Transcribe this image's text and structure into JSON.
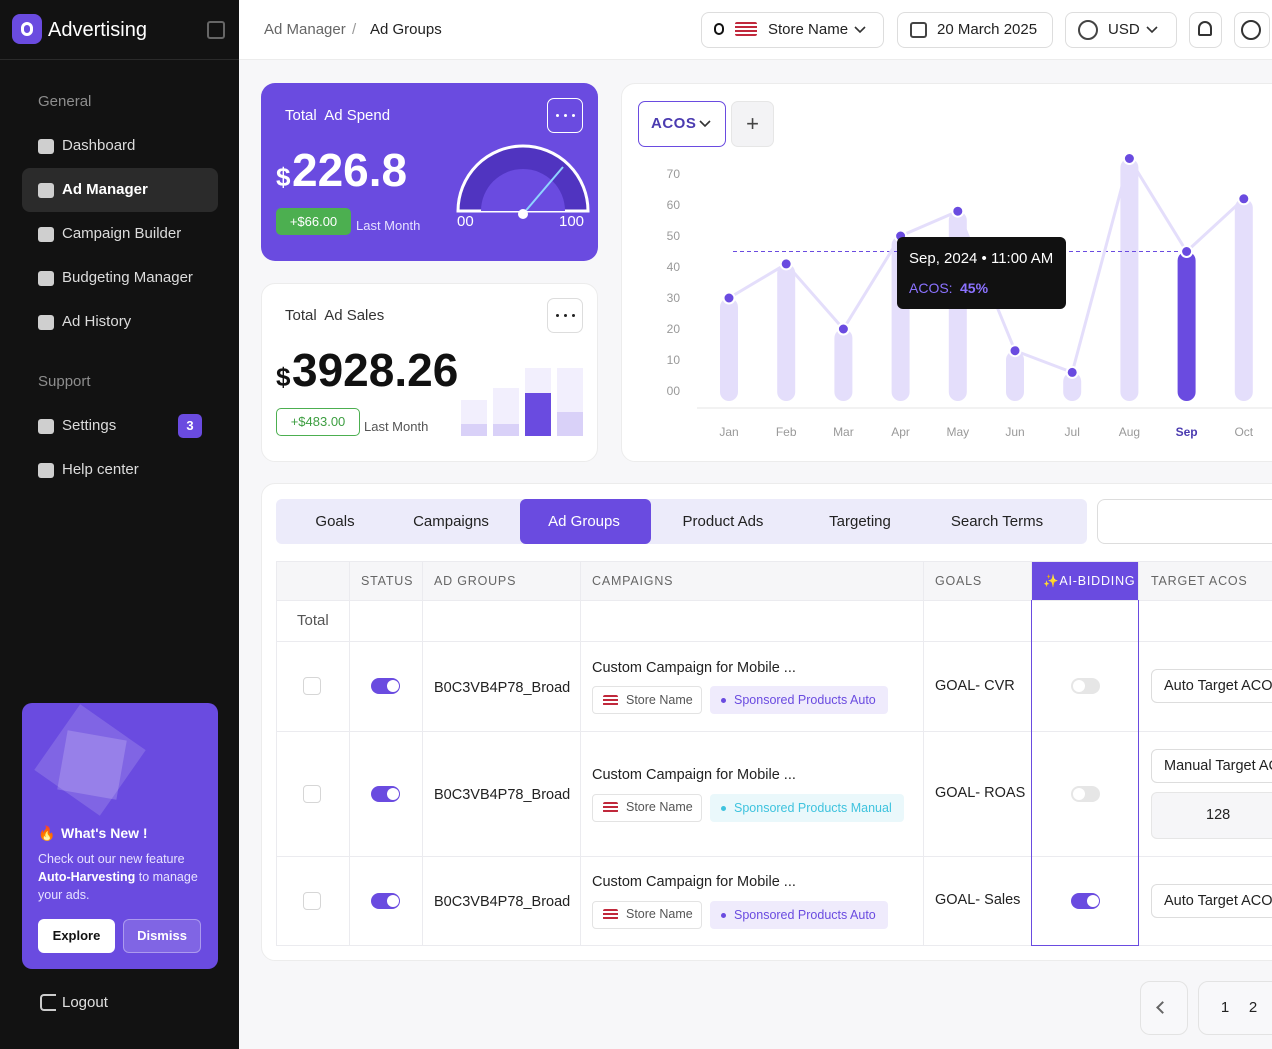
{
  "sidebar": {
    "brand": "Advertising",
    "sections": [
      {
        "title": "General",
        "items": [
          {
            "label": "Dashboard",
            "active": false
          },
          {
            "label": "Ad Manager",
            "active": true
          },
          {
            "label": "Campaign Builder",
            "active": false
          },
          {
            "label": "Budgeting Manager",
            "active": false
          },
          {
            "label": "Ad History",
            "active": false
          }
        ]
      },
      {
        "title": "Support",
        "items": [
          {
            "label": "Settings",
            "active": false,
            "badge": 3
          },
          {
            "label": "Help center",
            "active": false
          }
        ]
      }
    ],
    "promo": {
      "emoji": "🔥",
      "title": "What's New !",
      "text_before": "Check out our new feature",
      "highlight": "Auto-Harvesting",
      "text_after": "to manage your ads.",
      "buttons": [
        "Explore",
        "Dismiss"
      ]
    },
    "logout": "Logout"
  },
  "header": {
    "breadcrumb": [
      "Ad Manager",
      "Ad Groups"
    ],
    "separator": "/",
    "store": "Store Name",
    "date": "20 March 2025",
    "currency": "USD"
  },
  "spend_card": {
    "title": "Total  Ad Spend",
    "currency": "$",
    "value": 226.8,
    "change": "+$66.00",
    "period": "Last Month",
    "gauge": {
      "min_label": "00",
      "max_label": "100"
    }
  },
  "sales_card": {
    "title": "Total  Ad Sales",
    "currency": "$",
    "value": 3928.26,
    "change": "+$483.00",
    "period": "Last Month"
  },
  "chart_data": {
    "type": "bar",
    "line": true,
    "metric": "ACOS",
    "add_button": "+",
    "categories": [
      "Jan",
      "Feb",
      "Mar",
      "Apr",
      "May",
      "Jun",
      "Jul",
      "Aug",
      "Sep",
      "Oct"
    ],
    "values": [
      30,
      41,
      20,
      50,
      58,
      13,
      6,
      75,
      45,
      62
    ],
    "highlight_index": 8,
    "color": "#e4defb",
    "highlight_color": "#6a4be0",
    "ylim": [
      0,
      80
    ],
    "yticks": [
      {
        "value": 0,
        "label": "00"
      },
      10,
      20,
      30,
      40,
      50,
      60,
      70
    ],
    "tooltip": {
      "title": "Sep, 2024 • 11:00 AM",
      "label": "ACOS:",
      "value": "45%"
    }
  },
  "tabs": {
    "items": [
      "Goals",
      "Campaigns",
      "Ad Groups",
      "Product Ads",
      "Targeting",
      "Search Terms"
    ],
    "active": 2
  },
  "table": {
    "columns": [
      "STATUS",
      "AD GROUPS",
      "CAMPAIGNS",
      "GOALS",
      "✨AI-BIDDING",
      "TARGET ACOS"
    ],
    "total_label": "Total",
    "rows": [
      {
        "status": true,
        "ad_group": "B0C3VB4P78_Broad",
        "campaign": "Custom Campaign for Mobile ...",
        "store": "Store Name",
        "campaign_type": "Sponsored Products Auto",
        "type_color": "#6a4be0",
        "goal": "GOAL- CVR",
        "ai_bidding": false,
        "target": "Auto Target ACOS"
      },
      {
        "status": true,
        "ad_group": "B0C3VB4P78_Broad",
        "campaign": "Custom Campaign for Mobile ...",
        "store": "Store Name",
        "campaign_type": "Sponsored Products Manual",
        "type_color": "#3fc3de",
        "goal": "GOAL- ROAS",
        "ai_bidding": false,
        "target": "Manual Target ACOS",
        "target_value": 128
      },
      {
        "status": true,
        "ad_group": "B0C3VB4P78_Broad",
        "campaign": "Custom Campaign for Mobile ...",
        "store": "Store Name",
        "campaign_type": "Sponsored Products Auto",
        "type_color": "#6a4be0",
        "goal": "GOAL- Sales",
        "ai_bidding": true,
        "target": "Auto Target ACOS"
      }
    ]
  },
  "pagination": {
    "pages": [
      1,
      2
    ]
  }
}
